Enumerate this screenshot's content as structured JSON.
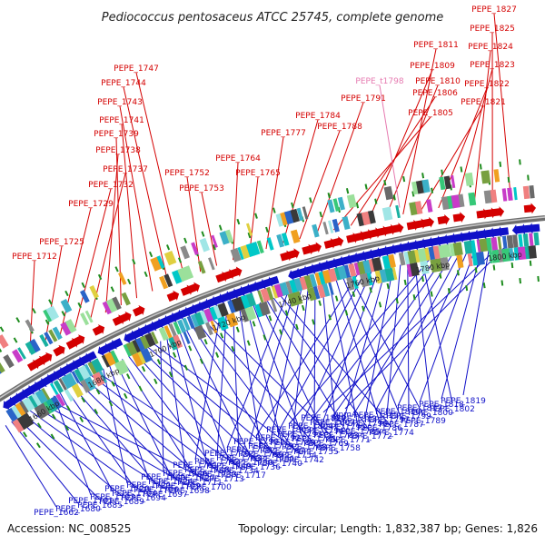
{
  "title": "Pediococcus pentosaceus ATCC 25745, complete genome",
  "footer": {
    "accession": "Accession: NC_008525",
    "summary": "Topology: circular; Length: 1,832,387 bp; Genes: 1,826"
  },
  "colors": {
    "forward": "#d40000",
    "reverse": "#1010c8",
    "rna": "#e67ab0",
    "backbone": "#8a8a8a",
    "tick": "#1e8c1e"
  },
  "kbp_labels": [
    "1660 kbp",
    "1680 kbp",
    "1700 kbp",
    "1720 kbp",
    "1740 kbp",
    "1760 kbp",
    "1780 kbp",
    "1800 kbp"
  ],
  "forward_labels": [
    "PEPE_1712",
    "PEPE_1725",
    "PEPE_1729",
    "PEPE_1732",
    "PEPE_1737",
    "PEPE_1738",
    "PEPE_1739",
    "PEPE_1741",
    "PEPE_1743",
    "PEPE_1744",
    "PEPE_1747",
    "PEPE_1752",
    "PEPE_1753",
    "PEPE_1764",
    "PEPE_1765",
    "PEPE_1777",
    "PEPE_1784",
    "PEPE_1788",
    "PEPE_1791",
    "PEPE_1805",
    "PEPE_1806",
    "PEPE_1809",
    "PEPE_1810",
    "PEPE_1811",
    "PEPE_1821",
    "PEPE_1822",
    "PEPE_1823",
    "PEPE_1824",
    "PEPE_1825",
    "PEPE_1827"
  ],
  "rna_labels": [
    "PEPE_t1798"
  ],
  "reverse_labels": [
    "PEPE_1662",
    "PEPE_1680",
    "PEPE_1685",
    "PEPE_1689",
    "PEPE_1694",
    "PEPE_1697",
    "PEPE_1698",
    "PEPE_1700",
    "PEPE_1701",
    "PEPE_1703",
    "PEPE_1704",
    "PEPE_1706",
    "PEPE_1709",
    "PEPE_1711",
    "PEPE_1713",
    "PEPE_1717",
    "PEPE_1720",
    "PEPE_1721",
    "PEPE_1724",
    "PEPE_1727",
    "PEPE_1733",
    "PEPE_1734",
    "PEPE_1736",
    "PEPE_1740",
    "PEPE_1742",
    "PEPE_1745",
    "PEPE_1746",
    "PEPE_1748",
    "PEPE_1749",
    "PEPE_1750",
    "PEPE_1751",
    "PEPE_1754",
    "PEPE_1755",
    "PEPE_1758",
    "PEPE_1761",
    "PEPE_1762",
    "PEPE_1763",
    "PEPE_1766",
    "PEPE_1767",
    "PEPE_1768",
    "PEPE_1769",
    "PEPE_1771",
    "PEPE_1772",
    "PEPE_1774",
    "PEPE_1776",
    "PEPE_1778",
    "PEPE_1779",
    "PEPE_1780",
    "PEPE_1781",
    "PEPE_1783",
    "PEPE_1785",
    "PEPE_1786",
    "PEPE_1787",
    "PEPE_1789",
    "PEPE_1790",
    "PEPE_1792",
    "PEPE_1793",
    "PEPE_1794",
    "PEPE_1795",
    "PEPE_1796",
    "PEPE_1797",
    "PEPE_1799",
    "PEPE_1800",
    "PEPE_1802",
    "PEPE_1803",
    "PEPE_1804",
    "PEPE_1807",
    "PEPE_1813",
    "PEPE_1815",
    "PEPE_1816",
    "PEPE_1817",
    "PEPE_1818",
    "PEPE_1819",
    "PEPE_1820",
    "gpmA"
  ]
}
